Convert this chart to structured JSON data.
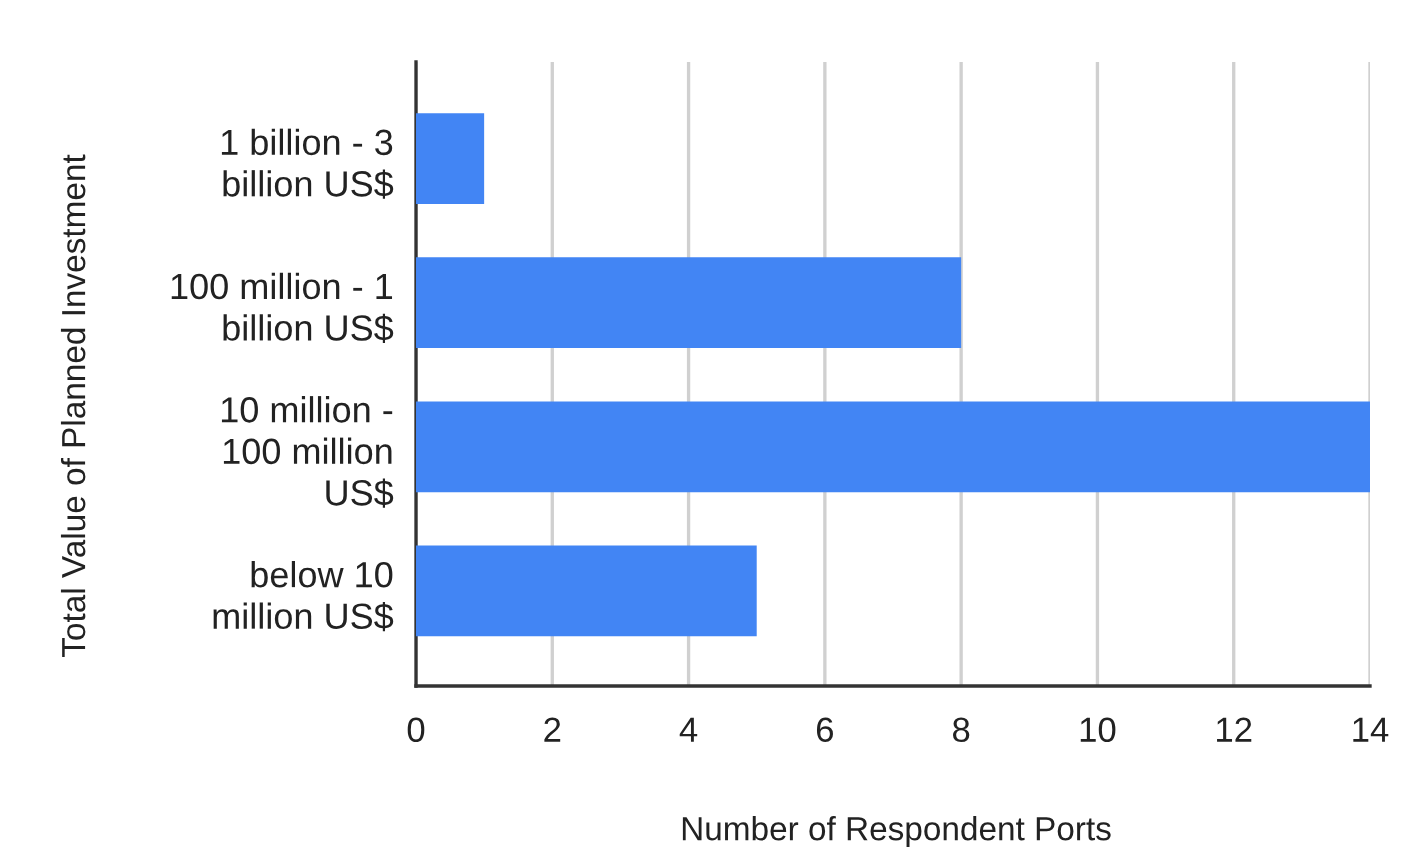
{
  "chart_data": {
    "type": "bar",
    "orientation": "horizontal",
    "xlabel": "Number of Respondent Ports",
    "ylabel": "Total Value of Planned Investment",
    "categories": [
      "1 billion - 3\nbillion US$",
      "100 million - 1\nbillion US$",
      "10 million -\n100 million\nUS$",
      "below 10\nmillion US$"
    ],
    "values": [
      1,
      8,
      14,
      5
    ],
    "color": "#4285f4",
    "xlim": [
      0,
      14
    ],
    "xticks": [
      0,
      2,
      4,
      6,
      8,
      10,
      12,
      14
    ],
    "grid": "x"
  }
}
